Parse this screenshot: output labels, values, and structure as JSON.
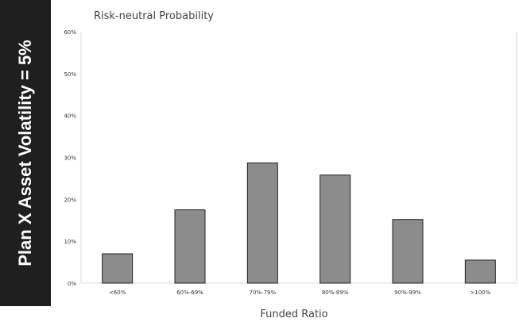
{
  "side_label": "Plan X Asset Volatility = 5%",
  "chart_data": {
    "type": "bar",
    "title": "Risk-neutral Probability",
    "xlabel": "Funded Ratio",
    "ylabel": "",
    "categories": [
      "<60%",
      "60%-69%",
      "70%-79%",
      "80%-89%",
      "90%-99%",
      ">100%"
    ],
    "values": [
      7,
      17.5,
      28.7,
      25.8,
      15.2,
      5.5
    ],
    "ylim": [
      0,
      60
    ],
    "yticks": [
      "0%",
      "10%",
      "20%",
      "30%",
      "40%",
      "50%",
      "60%"
    ],
    "bar_color": "#8c8c8c",
    "grid": false,
    "legend": "none"
  }
}
